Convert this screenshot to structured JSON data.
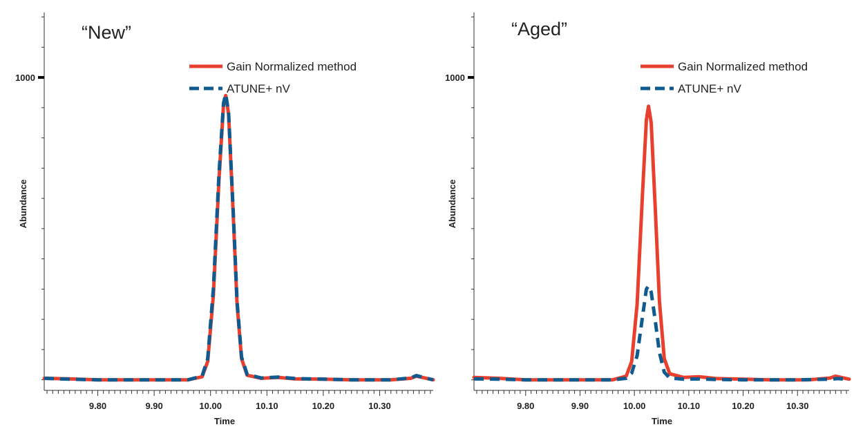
{
  "colors": {
    "red": "#e8402f",
    "blue": "#0f5a8f",
    "axis": "#333333"
  },
  "chart_data": [
    {
      "type": "line",
      "title": "“New”",
      "xlabel": "Time",
      "ylabel": "Abundance",
      "xlim": [
        9.705,
        10.395
      ],
      "ylim": [
        -35,
        1215
      ],
      "x_ticks": [
        9.8,
        9.9,
        10.0,
        10.1,
        10.2,
        10.3
      ],
      "x_tick_labels": [
        "9.80",
        "9.90",
        "10.00",
        "10.10",
        "10.20",
        "10.30"
      ],
      "y_ticks": [
        1000
      ],
      "y_tick_labels": [
        "1000"
      ],
      "legend": "top-right",
      "series": [
        {
          "name": "Gain Normalized method",
          "color": "#e8402f",
          "style": "solid",
          "points": [
            [
              9.705,
              5
            ],
            [
              9.75,
              3
            ],
            [
              9.8,
              0
            ],
            [
              9.85,
              0
            ],
            [
              9.9,
              0
            ],
            [
              9.96,
              0
            ],
            [
              9.985,
              10
            ],
            [
              9.995,
              60
            ],
            [
              10.005,
              280
            ],
            [
              10.015,
              660
            ],
            [
              10.023,
              910
            ],
            [
              10.027,
              940
            ],
            [
              10.032,
              880
            ],
            [
              10.04,
              560
            ],
            [
              10.047,
              250
            ],
            [
              10.055,
              70
            ],
            [
              10.065,
              15
            ],
            [
              10.09,
              5
            ],
            [
              10.12,
              8
            ],
            [
              10.15,
              3
            ],
            [
              10.2,
              2
            ],
            [
              10.25,
              0
            ],
            [
              10.32,
              0
            ],
            [
              10.355,
              5
            ],
            [
              10.365,
              12
            ],
            [
              10.375,
              8
            ],
            [
              10.39,
              2
            ],
            [
              10.395,
              0
            ]
          ]
        },
        {
          "name": "ATUNE+ nV",
          "color": "#0f5a8f",
          "style": "dashed",
          "points": [
            [
              9.705,
              5
            ],
            [
              9.75,
              2
            ],
            [
              9.8,
              0
            ],
            [
              9.85,
              0
            ],
            [
              9.9,
              0
            ],
            [
              9.96,
              0
            ],
            [
              9.985,
              12
            ],
            [
              9.995,
              70
            ],
            [
              10.005,
              300
            ],
            [
              10.015,
              680
            ],
            [
              10.023,
              915
            ],
            [
              10.027,
              945
            ],
            [
              10.032,
              885
            ],
            [
              10.04,
              570
            ],
            [
              10.047,
              260
            ],
            [
              10.055,
              75
            ],
            [
              10.065,
              18
            ],
            [
              10.09,
              6
            ],
            [
              10.12,
              9
            ],
            [
              10.15,
              4
            ],
            [
              10.2,
              2
            ],
            [
              10.25,
              0
            ],
            [
              10.32,
              0
            ],
            [
              10.355,
              6
            ],
            [
              10.365,
              14
            ],
            [
              10.375,
              9
            ],
            [
              10.39,
              2
            ],
            [
              10.395,
              0
            ]
          ]
        }
      ]
    },
    {
      "type": "line",
      "title": "“Aged”",
      "xlabel": "Time",
      "ylabel": "Abundance",
      "xlim": [
        9.705,
        10.395
      ],
      "ylim": [
        -35,
        1215
      ],
      "x_ticks": [
        9.8,
        9.9,
        10.0,
        10.1,
        10.2,
        10.3
      ],
      "x_tick_labels": [
        "9.80",
        "9.90",
        "10.00",
        "10.10",
        "10.20",
        "10.30"
      ],
      "y_ticks": [
        1000
      ],
      "y_tick_labels": [
        "1000"
      ],
      "legend": "top-right",
      "series": [
        {
          "name": "Gain Normalized method",
          "color": "#e8402f",
          "style": "solid",
          "points": [
            [
              9.705,
              8
            ],
            [
              9.75,
              5
            ],
            [
              9.8,
              0
            ],
            [
              9.85,
              0
            ],
            [
              9.9,
              0
            ],
            [
              9.96,
              0
            ],
            [
              9.985,
              12
            ],
            [
              9.995,
              60
            ],
            [
              10.005,
              250
            ],
            [
              10.015,
              620
            ],
            [
              10.022,
              860
            ],
            [
              10.026,
              905
            ],
            [
              10.031,
              850
            ],
            [
              10.038,
              580
            ],
            [
              10.046,
              260
            ],
            [
              10.055,
              70
            ],
            [
              10.065,
              20
            ],
            [
              10.09,
              8
            ],
            [
              10.12,
              10
            ],
            [
              10.15,
              4
            ],
            [
              10.2,
              2
            ],
            [
              10.25,
              0
            ],
            [
              10.32,
              0
            ],
            [
              10.36,
              6
            ],
            [
              10.37,
              12
            ],
            [
              10.38,
              8
            ],
            [
              10.395,
              2
            ]
          ]
        },
        {
          "name": "ATUNE+ nV",
          "color": "#0f5a8f",
          "style": "dashed",
          "points": [
            [
              9.705,
              3
            ],
            [
              9.75,
              2
            ],
            [
              9.8,
              0
            ],
            [
              9.85,
              0
            ],
            [
              9.9,
              0
            ],
            [
              9.96,
              0
            ],
            [
              9.985,
              5
            ],
            [
              9.995,
              22
            ],
            [
              10.005,
              80
            ],
            [
              10.015,
              210
            ],
            [
              10.022,
              300
            ],
            [
              10.026,
              310
            ],
            [
              10.031,
              290
            ],
            [
              10.038,
              200
            ],
            [
              10.046,
              90
            ],
            [
              10.055,
              25
            ],
            [
              10.065,
              6
            ],
            [
              10.09,
              2
            ],
            [
              10.12,
              3
            ],
            [
              10.15,
              1
            ],
            [
              10.2,
              0
            ],
            [
              10.3,
              0
            ],
            [
              10.36,
              2
            ],
            [
              10.375,
              4
            ],
            [
              10.395,
              1
            ]
          ]
        }
      ]
    }
  ]
}
